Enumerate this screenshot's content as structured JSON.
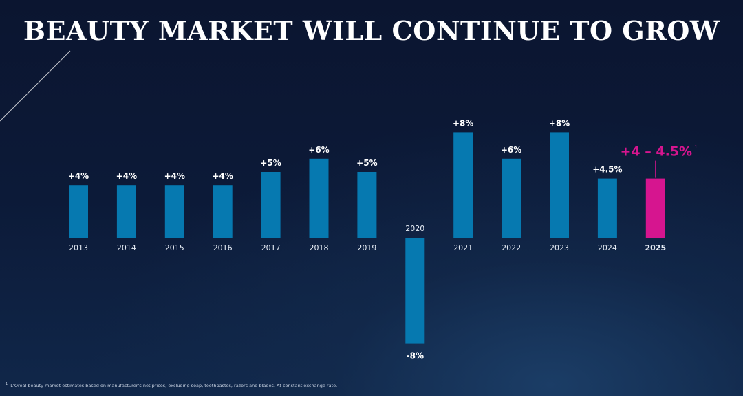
{
  "title": "BEAUTY MARKET WILL CONTINUE TO GROW",
  "footnote": {
    "marker": "1",
    "text": "L’Oréal beauty market estimates based on manufacturer’s net prices, excluding soap, toothpastes, razors and blades. At constant exchange rate."
  },
  "colors": {
    "bar": "#0679b0",
    "highlight": "#d6158f",
    "text": "#ffffff",
    "axis_label": "#e6ecf5"
  },
  "chart_data": {
    "type": "bar",
    "categories": [
      "2013",
      "2014",
      "2015",
      "2016",
      "2017",
      "2018",
      "2019",
      "2020",
      "2021",
      "2022",
      "2023",
      "2024",
      "2025"
    ],
    "values": [
      4,
      4,
      4,
      4,
      5,
      6,
      5,
      -8,
      8,
      6,
      8,
      4.5,
      4.5
    ],
    "value_labels": [
      "+4%",
      "+4%",
      "+4%",
      "+4%",
      "+5%",
      "+6%",
      "+5%",
      "-8%",
      "+8%",
      "+6%",
      "+8%",
      "+4.5%",
      "+4 – 4.5%"
    ],
    "highlight": {
      "category": "2025",
      "label_main": "+4 – 4.5%",
      "label_sup": "1"
    },
    "unit": "%",
    "ylim": [
      -8,
      8
    ],
    "grid": false,
    "legend": "none"
  }
}
